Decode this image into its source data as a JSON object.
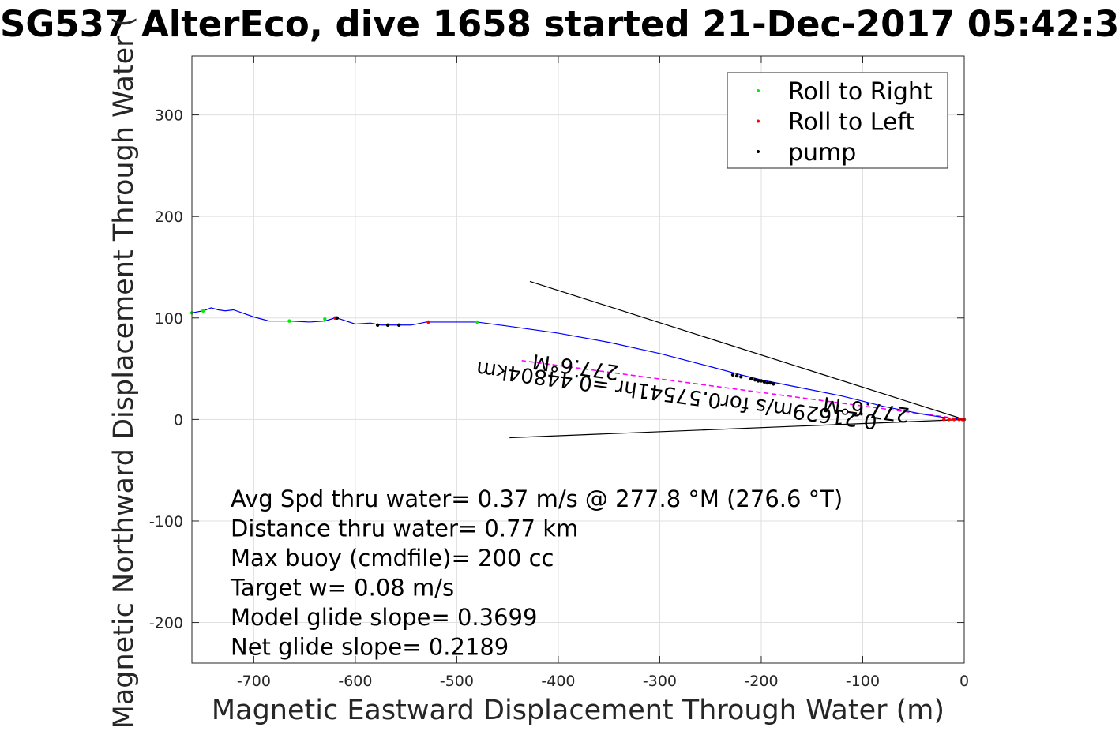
{
  "chart_data": {
    "type": "line",
    "title": "SG537 AlterEco, dive 1658 started 21-Dec-2017 05:42:3",
    "xlabel": "Magnetic Eastward Displacement Through Water (m)",
    "ylabel": "Magnetic Northward Displacement Through Water (",
    "xlim": [
      -761,
      0
    ],
    "ylim": [
      -240,
      358
    ],
    "xticks": [
      -700,
      -600,
      -500,
      -400,
      -300,
      -200,
      -100,
      0
    ],
    "yticks": [
      -200,
      -100,
      0,
      100,
      200,
      300
    ],
    "grid": true,
    "legend_position": "top-right",
    "colors": {
      "track": "#0000ff",
      "roll_right": "#00ee00",
      "roll_left": "#ff0000",
      "pump": "#000000",
      "current": "#ff00ff",
      "lines": "#000000"
    },
    "series": [
      {
        "name": "track",
        "x": [
          -761,
          -750,
          -742,
          -735,
          -728,
          -720,
          -700,
          -685,
          -665,
          -645,
          -630,
          -620,
          -615,
          -600,
          -585,
          -575,
          -565,
          -555,
          -545,
          -530,
          -500,
          -480,
          -450,
          -400,
          -350,
          -300,
          -250,
          -220,
          -200,
          -180,
          -160,
          -140,
          -120,
          -100,
          -80,
          -60,
          -40,
          -20,
          0
        ],
        "y": [
          105,
          107,
          110,
          108,
          107,
          108,
          101,
          97,
          97,
          96,
          97,
          100,
          99,
          94,
          95,
          93,
          93,
          93,
          93,
          96,
          96,
          96,
          92,
          85,
          76,
          65,
          52,
          44,
          39,
          35,
          31,
          27,
          23,
          18,
          13,
          9,
          5,
          2,
          0
        ]
      },
      {
        "name": "Roll to Right",
        "x": [
          -761,
          -750,
          -665,
          -630,
          -480
        ],
        "y": [
          105,
          107,
          97,
          99,
          96
        ]
      },
      {
        "name": "Roll to Left",
        "x": [
          -620,
          -528,
          -20,
          -15,
          -10,
          -5,
          -2,
          0
        ],
        "y": [
          100,
          96,
          0,
          0,
          0,
          0,
          0,
          0
        ]
      },
      {
        "name": "pump",
        "x": [
          -618,
          -578,
          -568,
          -557,
          -228,
          -224,
          -220,
          -210,
          -206,
          -203,
          -200,
          -197,
          -194,
          -191,
          -188
        ],
        "y": [
          100,
          93,
          93,
          93,
          44,
          43,
          42,
          40,
          39,
          38,
          38,
          37,
          36,
          36,
          35
        ]
      }
    ],
    "vectors": [
      {
        "name": "current-direction",
        "x": [
          0,
          -436
        ],
        "y": [
          0,
          58
        ]
      },
      {
        "name": "envelope-upper",
        "x": [
          0,
          -428
        ],
        "y": [
          0,
          136
        ]
      },
      {
        "name": "envelope-lower",
        "x": [
          0,
          -448
        ],
        "y": [
          0,
          -18
        ]
      }
    ],
    "rotated_labels": [
      "0.21629m/s for0.57541hr =0.44804km",
      "277.6°M",
      "277.6°M"
    ],
    "annotations": [
      "Avg Spd thru water=  0.37 m/s @ 277.8 °M (276.6 °T)",
      "Distance thru water=  0.77 km",
      "Max buoy (cmdfile)= 200 cc",
      "Target w= 0.08 m/s",
      "Model glide slope= 0.3699",
      "Net glide slope= 0.2189"
    ]
  }
}
